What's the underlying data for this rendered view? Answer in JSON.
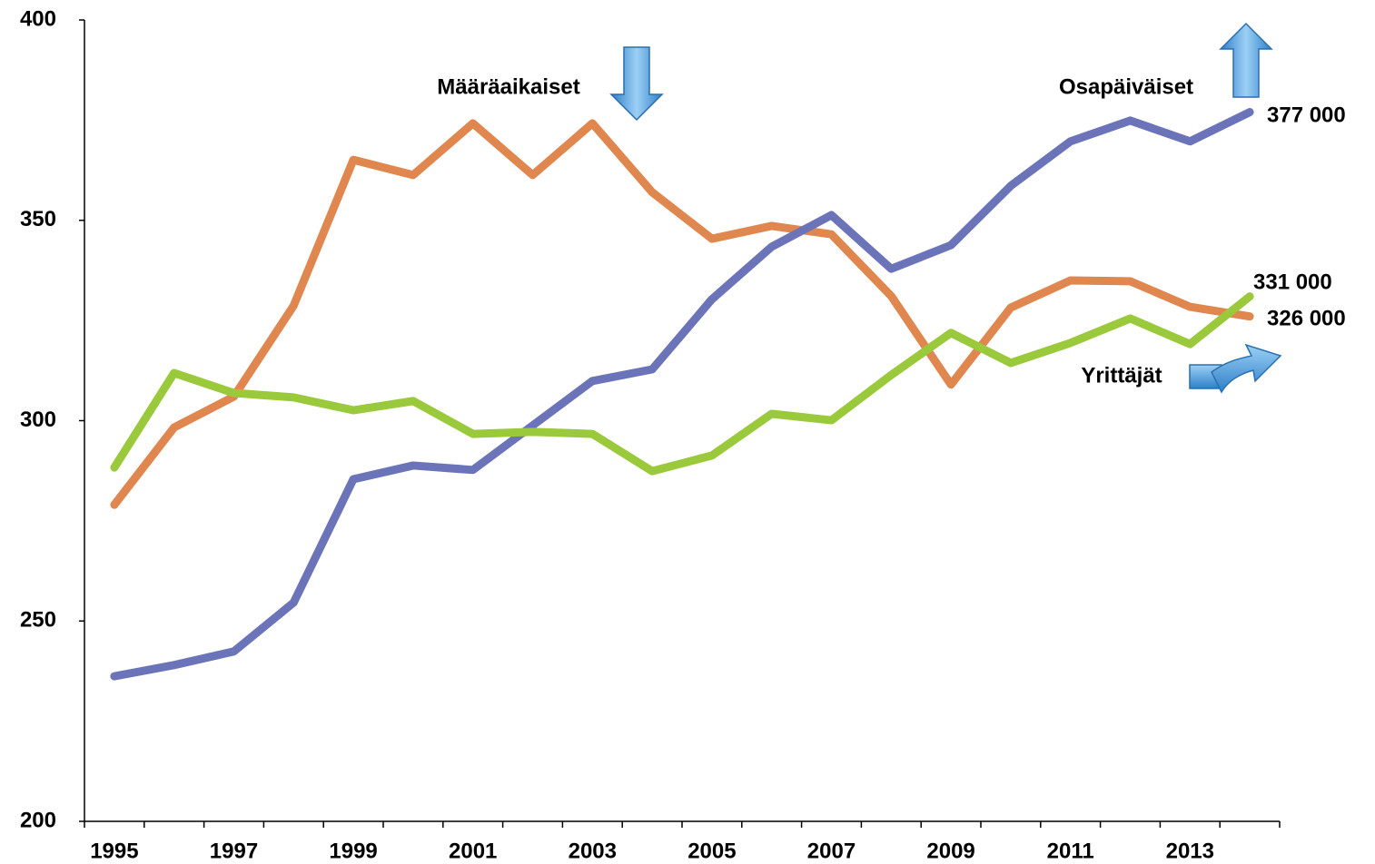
{
  "chart_data": {
    "type": "line",
    "categories": [
      "1995",
      null,
      "1997",
      null,
      "1999",
      null,
      "2001",
      null,
      "2003",
      null,
      "2005",
      null,
      "2007",
      null,
      "2009",
      null,
      "2011",
      null,
      "2013",
      null
    ],
    "series": [
      {
        "name": "Määräaikaiset",
        "color": "#e0874f",
        "values": [
          279,
          298.3,
          306,
          328.7,
          365.1,
          361.3,
          374.2,
          361.3,
          374.2,
          357,
          345.4,
          348.6,
          346.5,
          331.1,
          309,
          328.2,
          335,
          334.8,
          328.4,
          326
        ],
        "value_labels": [
          null,
          null,
          null,
          null,
          null,
          null,
          null,
          null,
          null,
          null,
          null,
          null,
          null,
          null,
          null,
          null,
          null,
          null,
          null,
          "326 000"
        ]
      },
      {
        "name": "Osapäiväiset",
        "color": "#6b74b9",
        "values": [
          236.2,
          239,
          242.4,
          254.6,
          285.4,
          288.8,
          287.7,
          298.8,
          309.9,
          312.8,
          330.3,
          343.4,
          351.3,
          337.9,
          343.8,
          358.6,
          369.7,
          374.9,
          369.7,
          377
        ],
        "value_labels": [
          null,
          null,
          null,
          null,
          null,
          null,
          null,
          null,
          null,
          null,
          null,
          null,
          null,
          null,
          null,
          null,
          null,
          null,
          null,
          "377 000"
        ]
      },
      {
        "name": "Yrittäjät",
        "color": "#9ac93b",
        "values": [
          288.3,
          311.9,
          306.9,
          305.8,
          302.6,
          304.9,
          296.7,
          297.2,
          296.7,
          287.4,
          291.3,
          301.7,
          300.1,
          311.4,
          321.9,
          314.4,
          319.4,
          325.5,
          319.1,
          331
        ],
        "value_labels": [
          null,
          null,
          null,
          null,
          null,
          null,
          null,
          null,
          null,
          null,
          null,
          null,
          null,
          null,
          null,
          null,
          null,
          null,
          null,
          "331 000"
        ]
      }
    ],
    "ylim": [
      200,
      400
    ],
    "yticks": [
      200,
      250,
      300,
      350,
      400
    ]
  }
}
